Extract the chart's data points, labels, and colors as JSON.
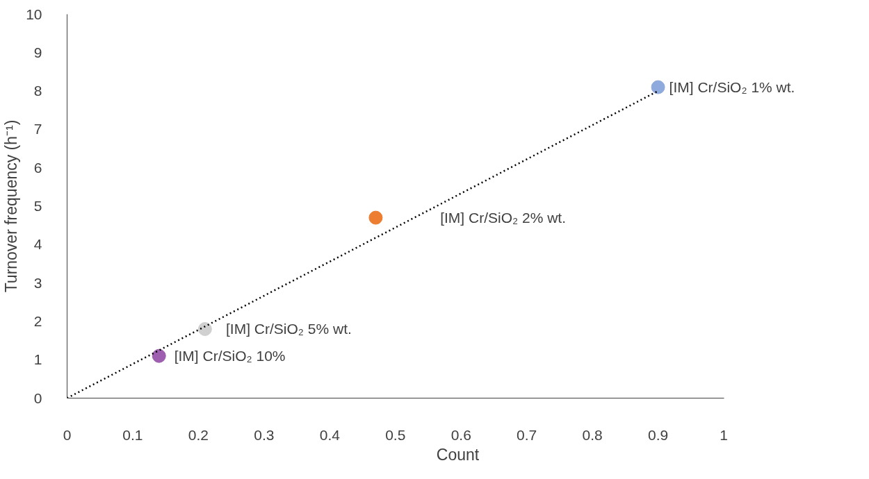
{
  "chart_data": {
    "type": "scatter",
    "xlabel": "Count",
    "ylabel": "Turnover frequency (h⁻¹)",
    "xlim": [
      0,
      1
    ],
    "ylim": [
      0,
      10
    ],
    "xticks": [
      0,
      0.1,
      0.2,
      0.3,
      0.4,
      0.5,
      0.6,
      0.7,
      0.8,
      0.9,
      1
    ],
    "yticks": [
      0,
      1,
      2,
      3,
      4,
      5,
      6,
      7,
      8,
      9,
      10
    ],
    "grid": false,
    "legend": false,
    "marker": "circle",
    "series": [
      {
        "name": "[IM] Cr/SiO₂ 1% wt.",
        "color": "#8faadc",
        "x": [
          0.9
        ],
        "values": [
          8.1
        ]
      },
      {
        "name": "[IM] Cr/SiO₂ 2% wt.",
        "color": "#ed7d31",
        "x": [
          0.47
        ],
        "values": [
          4.7
        ]
      },
      {
        "name": "[IM] Cr/SiO₂ 5% wt.",
        "color": "#d0d0d0",
        "x": [
          0.21
        ],
        "values": [
          1.8
        ]
      },
      {
        "name": "[IM] Cr/SiO₂ 10%",
        "color": "#9e5fb0",
        "x": [
          0.14
        ],
        "values": [
          1.1
        ]
      },
      {
        "type": "line",
        "marker": "none",
        "line_style": "dotted",
        "color": "#000000",
        "x": [
          0,
          0.9
        ],
        "values": [
          0,
          8.0
        ]
      }
    ]
  }
}
